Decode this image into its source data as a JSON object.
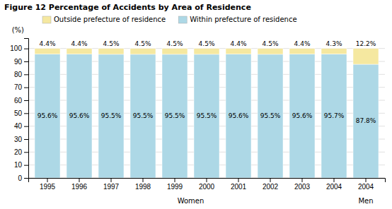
{
  "chart_data": {
    "type": "bar",
    "stacked": true,
    "title": "Figure 12  Percentage of Accidents by Area of Residence",
    "ylabel": "(%)",
    "categories": [
      "1995",
      "1996",
      "1997",
      "1998",
      "1999",
      "2000",
      "2001",
      "2002",
      "2003",
      "2004",
      "2004"
    ],
    "series": [
      {
        "name": "Within prefecture of residence",
        "color": "#add8e6",
        "values": [
          95.6,
          95.6,
          95.5,
          95.5,
          95.5,
          95.5,
          95.6,
          95.5,
          95.6,
          95.7,
          87.8
        ],
        "value_labels": [
          "95.6%",
          "95.6%",
          "95.5%",
          "95.5%",
          "95.5%",
          "95.5%",
          "95.6%",
          "95.5%",
          "95.6%",
          "95.7%",
          "87.8%"
        ]
      },
      {
        "name": "Outside prefecture of residence",
        "color": "#f5e8a0",
        "values": [
          4.4,
          4.4,
          4.5,
          4.5,
          4.5,
          4.5,
          4.4,
          4.5,
          4.4,
          4.3,
          12.2
        ],
        "value_labels": [
          "4.4%",
          "4.4%",
          "4.5%",
          "4.5%",
          "4.5%",
          "4.5%",
          "4.4%",
          "4.5%",
          "4.4%",
          "4.3%",
          "12.2%"
        ]
      }
    ],
    "data_labels": true,
    "ylim": [
      0,
      108
    ],
    "yticks": [
      0,
      10,
      20,
      30,
      40,
      50,
      60,
      70,
      80,
      90,
      100
    ],
    "grid": true,
    "legend": "upper left",
    "annotations": [
      "Women",
      "Men"
    ]
  }
}
